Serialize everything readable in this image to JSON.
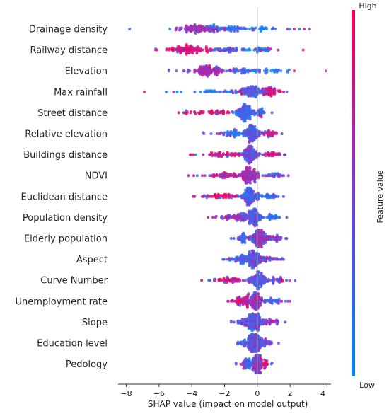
{
  "chart_data": {
    "type": "scatter",
    "subtype": "shap-beeswarm",
    "xlabel": "SHAP value (impact on model output)",
    "xlim": [
      -8.8,
      4.8
    ],
    "xticks": [
      -8,
      -6,
      -4,
      -2,
      0,
      2,
      4
    ],
    "colorbar": {
      "label": "Feature value",
      "high": "High",
      "low": "Low",
      "high_color": "#ff0052",
      "low_color": "#008bfb"
    },
    "features": [
      {
        "name": "Drainage density",
        "min": -7.8,
        "max": 3.2,
        "clusters": [
          [
            -3.5,
            1.3,
            0.55
          ],
          [
            -1.8,
            1.0,
            0.25
          ],
          [
            0.3,
            1.0,
            0.1
          ]
        ]
      },
      {
        "name": "Railway distance",
        "min": -6.2,
        "max": 2.8,
        "clusters": [
          [
            -4.2,
            1.2,
            0.85
          ],
          [
            -1.8,
            1.0,
            0.35
          ],
          [
            0.2,
            0.8,
            0.1
          ]
        ]
      },
      {
        "name": "Elevation",
        "min": -5.4,
        "max": 4.2,
        "clusters": [
          [
            -3.0,
            1.0,
            0.6
          ],
          [
            -0.8,
            1.0,
            0.3
          ],
          [
            1.0,
            1.2,
            0.1
          ]
        ]
      },
      {
        "name": "Max rainfall",
        "min": -6.9,
        "max": 1.8,
        "clusters": [
          [
            -0.4,
            1.0,
            0.3
          ],
          [
            0.9,
            0.6,
            0.85
          ],
          [
            -3.0,
            1.6,
            0.1
          ]
        ]
      },
      {
        "name": "Street distance",
        "min": -4.8,
        "max": 0.9,
        "clusters": [
          [
            -0.8,
            0.5,
            0.25
          ],
          [
            -3.0,
            1.2,
            0.85
          ],
          [
            0.2,
            0.3,
            0.2
          ]
        ]
      },
      {
        "name": "Relative elevation",
        "min": -3.3,
        "max": 1.5,
        "clusters": [
          [
            -0.3,
            0.5,
            0.35
          ],
          [
            -1.5,
            0.8,
            0.2
          ],
          [
            0.8,
            0.4,
            0.75
          ]
        ]
      },
      {
        "name": "Buildings distance",
        "min": -4.1,
        "max": 1.7,
        "clusters": [
          [
            -0.4,
            0.5,
            0.4
          ],
          [
            -2.2,
            1.0,
            0.8
          ],
          [
            0.9,
            0.5,
            0.8
          ]
        ]
      },
      {
        "name": "NDVI",
        "min": -4.2,
        "max": 1.9,
        "clusters": [
          [
            -0.5,
            0.6,
            0.6
          ],
          [
            -2.0,
            1.1,
            0.7
          ],
          [
            1.0,
            0.5,
            0.4
          ]
        ]
      },
      {
        "name": "Euclidean distance",
        "min": -3.9,
        "max": 1.6,
        "clusters": [
          [
            -0.5,
            0.5,
            0.3
          ],
          [
            -2.3,
            1.0,
            0.85
          ],
          [
            0.7,
            0.4,
            0.2
          ]
        ]
      },
      {
        "name": "Population density",
        "min": -3.0,
        "max": 1.8,
        "clusters": [
          [
            -0.3,
            0.5,
            0.35
          ],
          [
            -1.4,
            0.8,
            0.65
          ],
          [
            0.9,
            0.5,
            0.2
          ]
        ]
      },
      {
        "name": "Elderly population",
        "min": -1.6,
        "max": 1.8,
        "clusters": [
          [
            0.2,
            0.5,
            0.6
          ],
          [
            -0.8,
            0.5,
            0.3
          ],
          [
            1.1,
            0.4,
            0.5
          ]
        ]
      },
      {
        "name": "Aspect",
        "min": -2.1,
        "max": 1.6,
        "clusters": [
          [
            -0.2,
            0.5,
            0.4
          ],
          [
            -1.0,
            0.5,
            0.3
          ],
          [
            0.7,
            0.5,
            0.5
          ]
        ]
      },
      {
        "name": "Curve Number",
        "min": -3.4,
        "max": 2.3,
        "clusters": [
          [
            0.0,
            0.5,
            0.35
          ],
          [
            -1.8,
            1.0,
            0.8
          ],
          [
            1.2,
            0.6,
            0.4
          ]
        ]
      },
      {
        "name": "Unemployment rate",
        "min": -1.8,
        "max": 2.0,
        "clusters": [
          [
            -0.2,
            0.5,
            0.6
          ],
          [
            -1.0,
            0.5,
            0.8
          ],
          [
            1.0,
            0.5,
            0.3
          ]
        ]
      },
      {
        "name": "Slope",
        "min": -1.6,
        "max": 1.7,
        "clusters": [
          [
            -0.1,
            0.5,
            0.4
          ],
          [
            -0.8,
            0.5,
            0.3
          ],
          [
            0.8,
            0.5,
            0.55
          ]
        ]
      },
      {
        "name": "Education level",
        "min": -1.2,
        "max": 1.3,
        "clusters": [
          [
            -0.1,
            0.4,
            0.4
          ],
          [
            -0.6,
            0.4,
            0.3
          ],
          [
            0.6,
            0.4,
            0.5
          ]
        ]
      },
      {
        "name": "Pedology",
        "min": -1.3,
        "max": 0.9,
        "clusters": [
          [
            0.0,
            0.3,
            0.5
          ],
          [
            -0.6,
            0.3,
            0.3
          ],
          [
            0.4,
            0.3,
            0.8
          ]
        ]
      }
    ]
  }
}
